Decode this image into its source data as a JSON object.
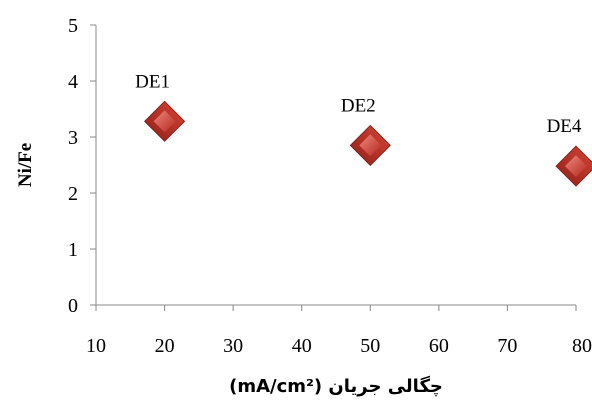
{
  "chart_data": {
    "type": "scatter",
    "title": "",
    "xlabel": "چگالی جریان (mA/cm²)",
    "ylabel": "Ni/Fe",
    "xlim": [
      10,
      80
    ],
    "ylim": [
      0,
      5
    ],
    "xticks": [
      10,
      20,
      30,
      40,
      50,
      60,
      70,
      80
    ],
    "yticks": [
      0,
      1,
      2,
      3,
      4,
      5
    ],
    "grid": false,
    "marker": "diamond",
    "marker_color": "#c0392b",
    "series": [
      {
        "points": [
          {
            "x": 20,
            "y": 3.28,
            "label": "DE1"
          },
          {
            "x": 50,
            "y": 2.85,
            "label": "DE2"
          },
          {
            "x": 80,
            "y": 2.48,
            "label": "DE4"
          }
        ]
      }
    ]
  }
}
